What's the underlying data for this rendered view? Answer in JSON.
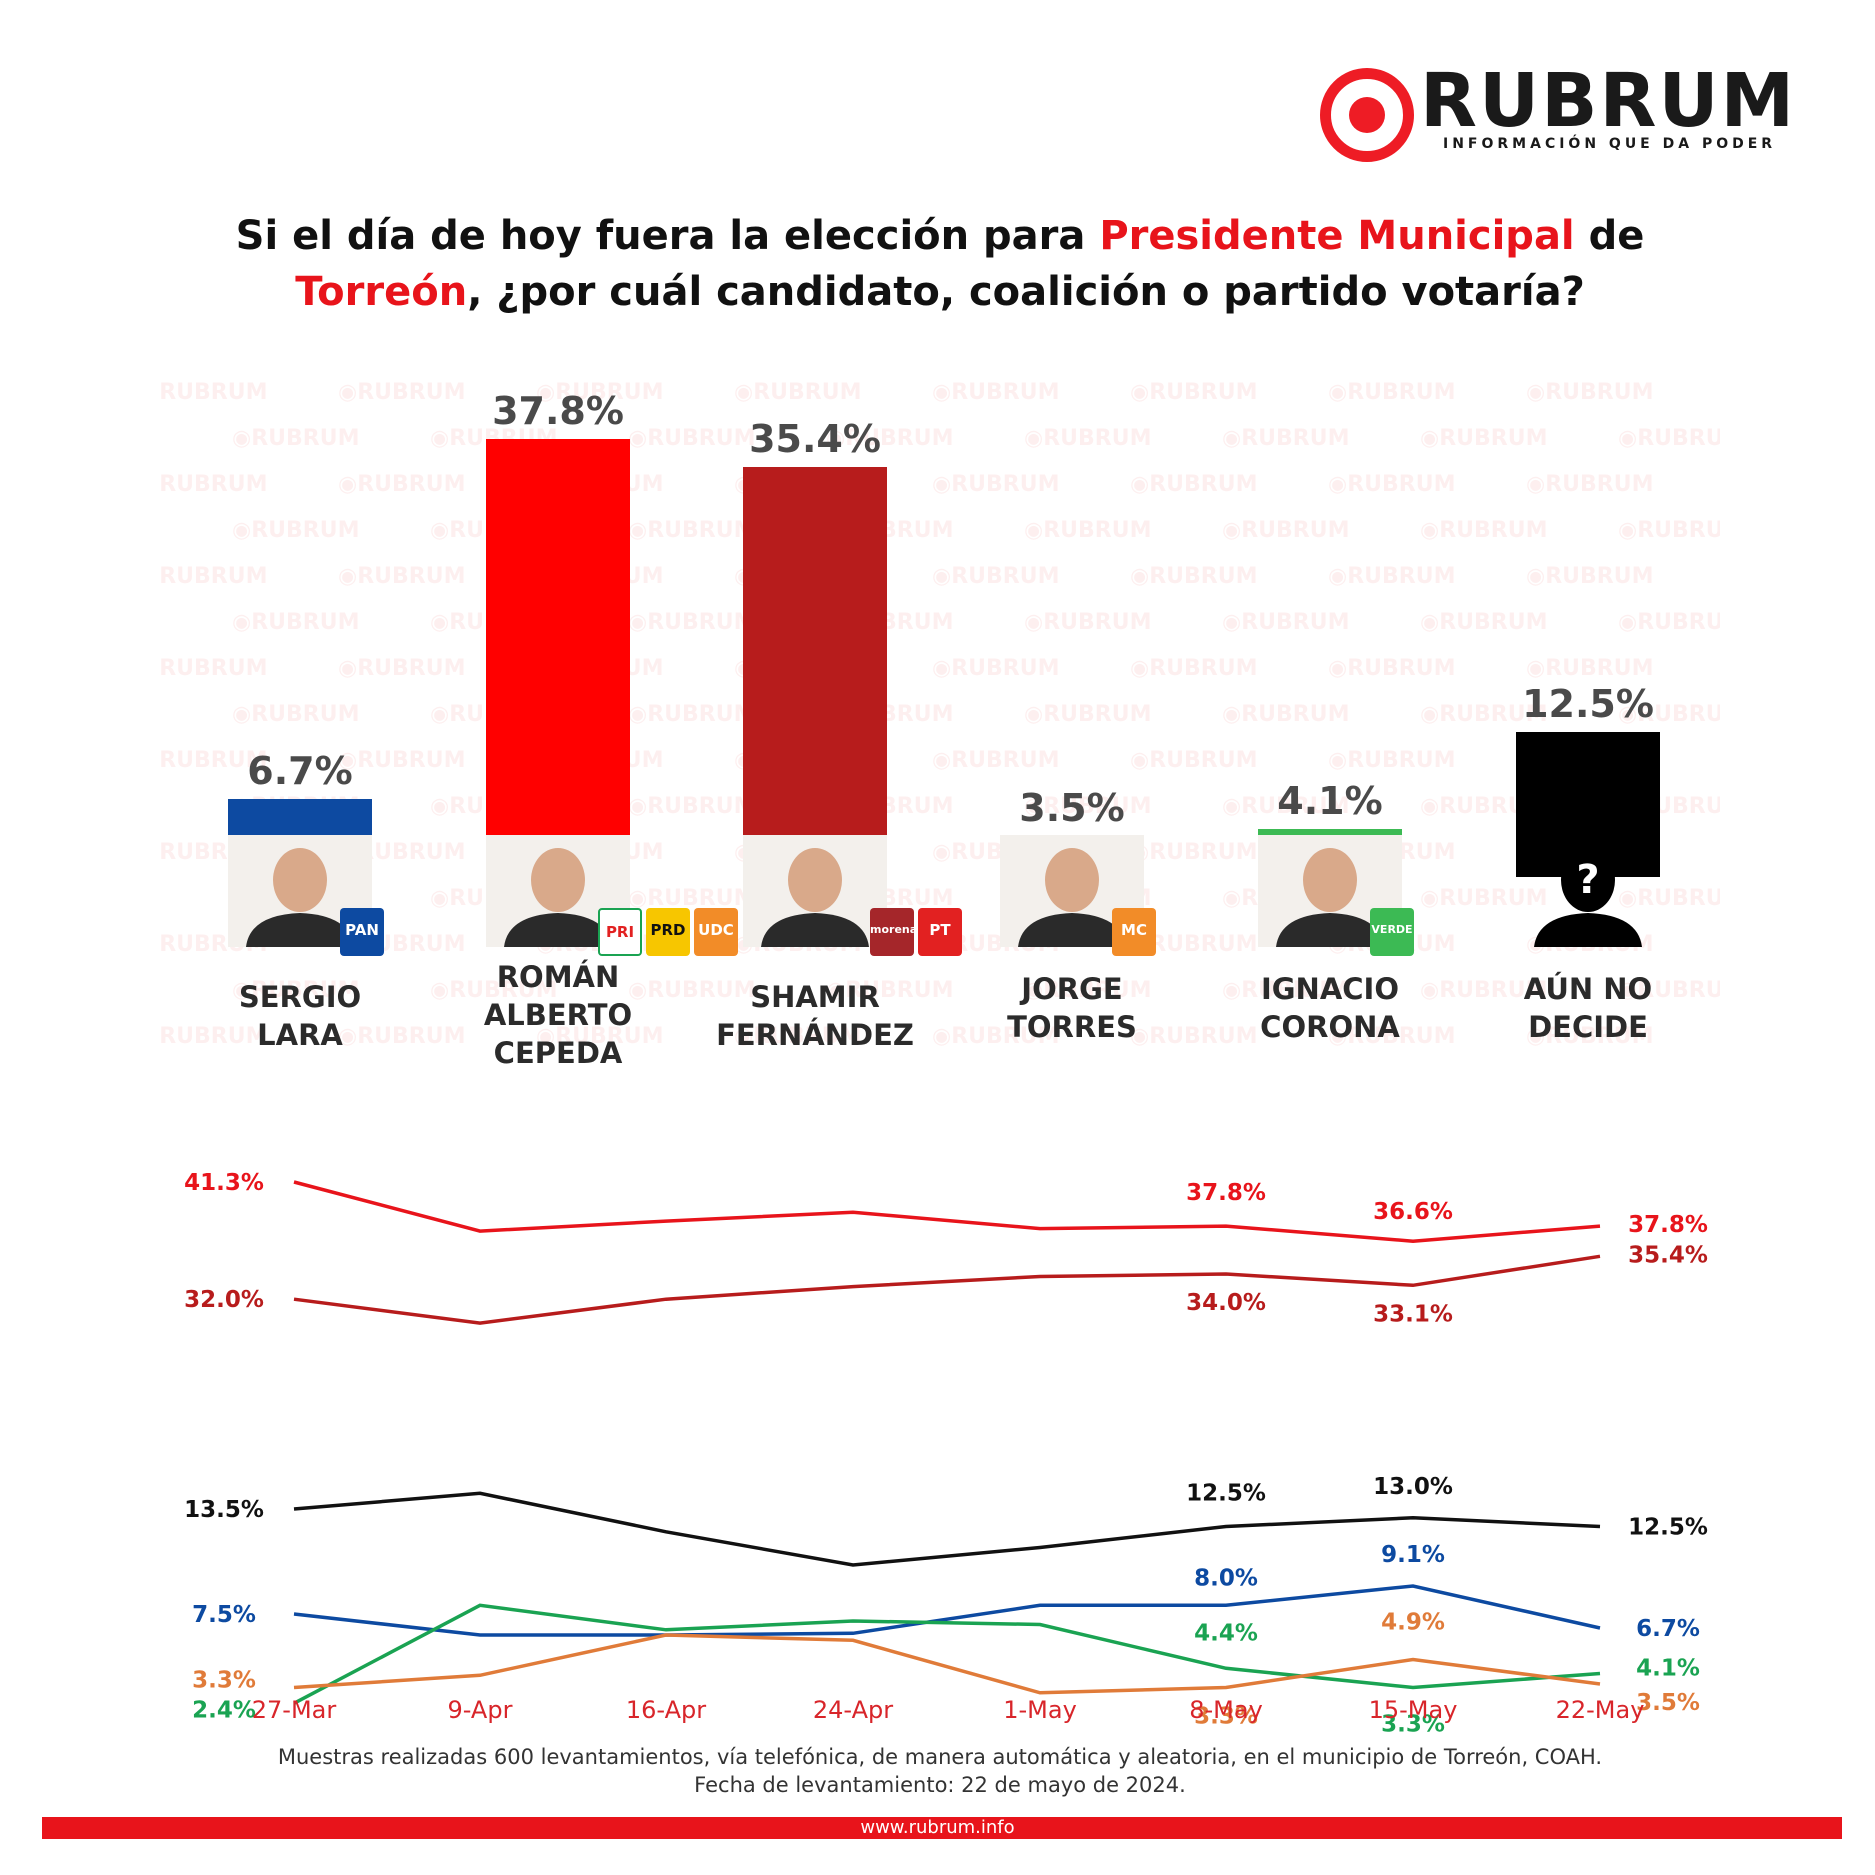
{
  "brand": {
    "name": "RUBRUM",
    "tagline": "INFORMACIÓN QUE DA PODER",
    "watermark": "RUBRUM",
    "url": "www.rubrum.info"
  },
  "question": {
    "part1": "Si el día de hoy fuera la elección para ",
    "highlight1": "Presidente Municipal",
    "part2": " de ",
    "highlight2": "Torreón",
    "part3": ", ¿por cuál candidato, coalición o partido votaría?"
  },
  "colors": {
    "accent": "#e8141b",
    "cepeda": "#ff0000",
    "fernandez": "#b71c1c",
    "lara": "#0d4aa1",
    "torres": "#e07b39",
    "corona": "#1aa352",
    "undecided": "#000000"
  },
  "candidates": [
    {
      "name_line1": "SERGIO",
      "name_line2": "LARA",
      "name_line3": "",
      "value_label": "6.7%",
      "parties": [
        "PAN"
      ]
    },
    {
      "name_line1": "ROMÁN",
      "name_line2": "ALBERTO",
      "name_line3": "CEPEDA",
      "value_label": "37.8%",
      "parties": [
        "PRI",
        "PRD",
        "UDC"
      ]
    },
    {
      "name_line1": "SHAMIR",
      "name_line2": "FERNÁNDEZ",
      "name_line3": "",
      "value_label": "35.4%",
      "parties": [
        "morena",
        "PT"
      ]
    },
    {
      "name_line1": "JORGE",
      "name_line2": "TORRES",
      "name_line3": "",
      "value_label": "3.5%",
      "parties": [
        "MOVIMIENTO CIUDADANO"
      ]
    },
    {
      "name_line1": "IGNACIO",
      "name_line2": "CORONA",
      "name_line3": "",
      "value_label": "4.1%",
      "parties": [
        "VERDE"
      ]
    },
    {
      "name_line1": "AÚN NO",
      "name_line2": "DECIDE",
      "name_line3": "",
      "value_label": "12.5%",
      "parties": []
    }
  ],
  "chart_data": [
    {
      "type": "bar",
      "title": "Si el día de hoy fuera la elección para Presidente Municipal de Torreón, ¿por cuál candidato, coalición o partido votaría?",
      "categories": [
        "SERGIO LARA",
        "ROMÁN ALBERTO CEPEDA",
        "SHAMIR FERNÁNDEZ",
        "JORGE TORRES",
        "IGNACIO CORONA",
        "AÚN NO DECIDE"
      ],
      "values": [
        6.7,
        37.8,
        35.4,
        3.5,
        4.1,
        12.5
      ],
      "colors": [
        "#0d4aa1",
        "#ff0000",
        "#b71c1c",
        "#ff8c00",
        "#3cba54",
        "#000000"
      ],
      "ylim": [
        0,
        40
      ]
    },
    {
      "type": "line",
      "x": [
        "27-Mar",
        "9-Apr",
        "16-Apr",
        "24-Apr",
        "1-May",
        "8-May",
        "15-May",
        "22-May"
      ],
      "ylim": [
        0,
        45
      ],
      "series": [
        {
          "key": "cepeda",
          "color": "#e8141b",
          "values": [
            41.3,
            37.4,
            38.2,
            38.9,
            37.6,
            37.8,
            36.6,
            37.8
          ],
          "labels": [
            "41.3%",
            "",
            "",
            "",
            "",
            "37.8%",
            "36.6%",
            "37.8%"
          ]
        },
        {
          "key": "fernandez",
          "color": "#b71c1c",
          "values": [
            32.0,
            30.1,
            32.0,
            33.0,
            33.8,
            34.0,
            33.1,
            35.4
          ],
          "labels": [
            "32.0%",
            "",
            "",
            "",
            "",
            "34.0%",
            "33.1%",
            "35.4%"
          ]
        },
        {
          "key": "undecided",
          "color": "#111111",
          "values": [
            13.5,
            14.4,
            12.2,
            10.3,
            11.3,
            12.5,
            13.0,
            12.5
          ],
          "labels": [
            "13.5%",
            "",
            "",
            "",
            "",
            "12.5%",
            "13.0%",
            "12.5%"
          ]
        },
        {
          "key": "lara",
          "color": "#0d4aa1",
          "values": [
            7.5,
            6.3,
            6.3,
            6.4,
            8.0,
            8.0,
            9.1,
            6.7
          ],
          "labels": [
            "7.5%",
            "",
            "",
            "",
            "",
            "8.0%",
            "9.1%",
            "6.7%"
          ]
        },
        {
          "key": "corona",
          "color": "#1aa352",
          "values": [
            2.4,
            8.0,
            6.6,
            7.1,
            6.9,
            4.4,
            3.3,
            4.1
          ],
          "labels": [
            "2.4%",
            "",
            "",
            "",
            "",
            "4.4%",
            "3.3%",
            "4.1%"
          ]
        },
        {
          "key": "torres",
          "color": "#e07b39",
          "values": [
            3.3,
            4.0,
            6.3,
            6.0,
            3.0,
            3.3,
            4.9,
            3.5
          ],
          "labels": [
            "3.3%",
            "",
            "",
            "",
            "",
            "3.3%",
            "4.9%",
            "3.5%"
          ]
        }
      ]
    }
  ],
  "footnote": {
    "line1": "Muestras realizadas 600 levantamientos, vía telefónica, de manera automática y aleatoria, en el municipio de Torreón, COAH.",
    "line2": "Fecha de levantamiento: 22 de mayo de 2024."
  }
}
